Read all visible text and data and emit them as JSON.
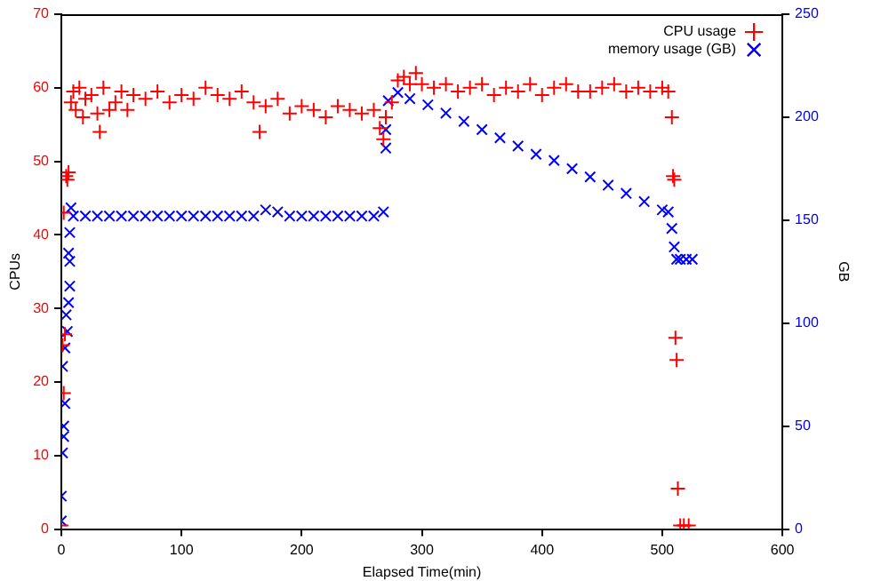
{
  "chart_data": {
    "type": "scatter",
    "xlabel": "Elapsed Time(min)",
    "ylabel": "CPUs",
    "y2label": "GB",
    "xlim": [
      0,
      600
    ],
    "xticks": [
      0,
      100,
      200,
      300,
      400,
      500,
      600
    ],
    "ylim": [
      0,
      70
    ],
    "yticks": [
      0,
      10,
      20,
      30,
      40,
      50,
      60,
      70
    ],
    "y2lim": [
      0,
      250
    ],
    "y2ticks": [
      0,
      50,
      100,
      150,
      200,
      250
    ],
    "grid": false,
    "legend": "top right",
    "series": [
      {
        "name": "CPU usage",
        "color": "#ff0000",
        "marker": "cross",
        "x": [
          0,
          1,
          2,
          2,
          3,
          4,
          5,
          6,
          8,
          10,
          12,
          15,
          18,
          20,
          25,
          30,
          32,
          35,
          40,
          45,
          50,
          55,
          60,
          70,
          80,
          90,
          100,
          110,
          120,
          130,
          140,
          150,
          160,
          165,
          170,
          180,
          190,
          200,
          210,
          220,
          230,
          240,
          250,
          260,
          265,
          268,
          270,
          275,
          280,
          285,
          290,
          295,
          300,
          310,
          320,
          330,
          340,
          350,
          360,
          370,
          380,
          390,
          400,
          410,
          420,
          430,
          440,
          450,
          460,
          470,
          480,
          490,
          500,
          505,
          508,
          509,
          510,
          511,
          512,
          513,
          515,
          518,
          522
        ],
        "values": [
          0.5,
          25,
          18.5,
          43,
          26.5,
          48,
          47.5,
          48.5,
          58,
          59.5,
          57,
          60,
          56,
          58.5,
          59,
          56.5,
          54,
          60,
          57,
          58,
          59.5,
          57,
          59,
          58.5,
          59.5,
          58,
          59,
          58.5,
          60,
          59,
          58.5,
          59.5,
          58,
          54,
          57.5,
          58.5,
          56.5,
          57.5,
          57,
          56,
          57.5,
          57,
          56.5,
          57,
          54.5,
          53,
          56,
          58,
          61,
          61.5,
          60.5,
          62,
          60.5,
          60,
          60.5,
          59.5,
          60,
          60.5,
          59,
          60,
          59.5,
          60.5,
          59,
          60,
          60.5,
          59.5,
          59.5,
          60,
          60.5,
          59.5,
          60,
          59.5,
          60,
          59.5,
          56,
          48,
          47.5,
          26,
          23,
          5.5,
          0.5,
          0.5,
          0.5
        ]
      },
      {
        "name": "memory usage (GB)",
        "color": "#0000ff",
        "marker": "x",
        "axis": "y2",
        "x": [
          0,
          0,
          1,
          2,
          2,
          3,
          1,
          3,
          5,
          4,
          6,
          7,
          7,
          6,
          7,
          8,
          10,
          20,
          30,
          40,
          50,
          60,
          70,
          80,
          90,
          100,
          110,
          120,
          130,
          140,
          150,
          160,
          170,
          180,
          190,
          200,
          210,
          220,
          230,
          240,
          250,
          260,
          268,
          270,
          270,
          272,
          280,
          290,
          305,
          320,
          335,
          350,
          365,
          380,
          395,
          410,
          425,
          440,
          455,
          470,
          485,
          500,
          505,
          508,
          510,
          512,
          515,
          520,
          525
        ],
        "values": [
          4,
          16,
          37,
          45,
          50,
          61,
          79,
          88,
          96,
          104,
          110,
          118,
          130,
          134,
          144,
          156,
          152,
          152,
          152,
          152,
          152,
          152,
          152,
          152,
          152,
          152,
          152,
          152,
          152,
          152,
          152,
          152,
          155,
          154,
          152,
          152,
          152,
          152,
          152,
          152,
          152,
          152,
          154,
          194,
          185,
          208,
          212,
          209,
          206,
          202,
          198,
          194,
          190,
          186,
          182,
          179,
          175,
          171,
          167,
          163,
          159,
          155,
          154,
          146,
          137,
          131,
          131,
          131,
          131
        ]
      }
    ]
  }
}
